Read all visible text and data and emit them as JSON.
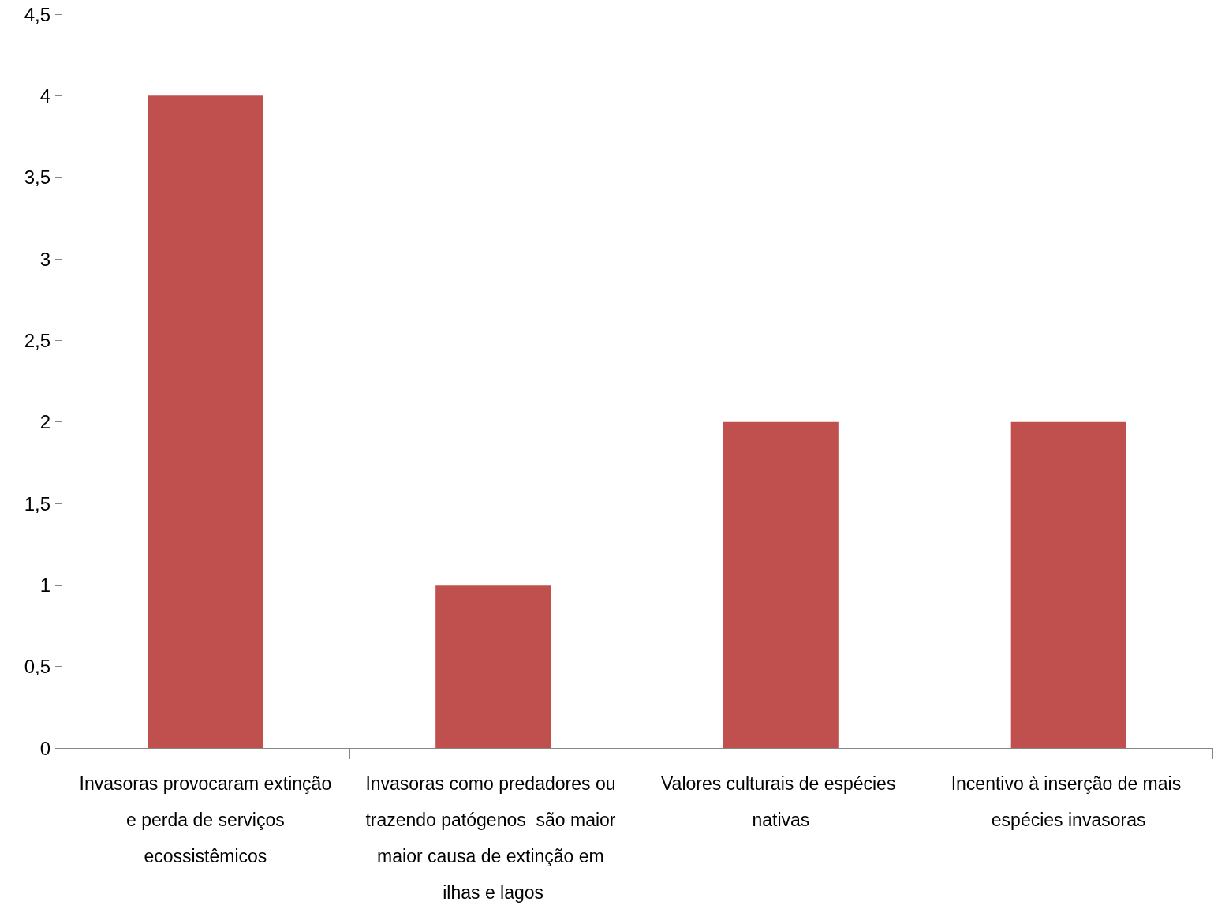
{
  "chart_data": {
    "type": "bar",
    "categories": [
      "Invasoras provocaram extinção e perda de serviços ecossistêmicos",
      "Invasoras como predadores ou trazendo patógenos  são maior maior causa de extinção em ilhas e lagos",
      "Valores culturais de espécies nativas",
      "Incentivo à inserção de mais espécies invasoras"
    ],
    "values": [
      4,
      1,
      2,
      2
    ],
    "color": "#c0504d",
    "ylim": [
      0,
      4.5
    ],
    "yticks": [
      0,
      {
        "value": 0.5,
        "label": "0,5"
      },
      1,
      {
        "value": 1.5,
        "label": "1,5"
      },
      2,
      {
        "value": 2.5,
        "label": "2,5"
      },
      3,
      {
        "value": 3.5,
        "label": "3,5"
      },
      4,
      {
        "value": 4.5,
        "label": "4,5"
      }
    ],
    "grid": false
  }
}
